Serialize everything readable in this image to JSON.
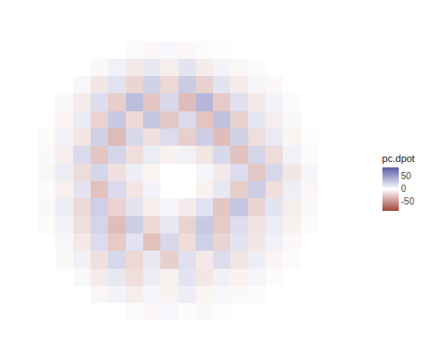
{
  "chart_data": {
    "type": "heatmap",
    "tick_labels": false,
    "colors": [
      "#a3453b",
      "#ffffff",
      "#5b5ba8"
    ],
    "colorbar_title": "pc.dpot",
    "color_range": [
      -85,
      85
    ],
    "color_ticks": [
      -50,
      0,
      50
    ],
    "x": [
      -7.5,
      -6.5,
      -5.5,
      -4.5,
      -3.5,
      -2.5,
      -1.5,
      -0.5,
      0.5,
      1.5,
      2.5,
      3.5,
      4.5,
      5.5,
      6.5,
      7.5
    ],
    "y": [
      -7.5,
      -6.5,
      -5.5,
      -4.5,
      -3.5,
      -2.5,
      -1.5,
      -0.5,
      0.5,
      1.5,
      2.5,
      3.5,
      4.5,
      5.5,
      6.5,
      7.5
    ],
    "z": [
      [
        null,
        null,
        null,
        null,
        null,
        2,
        -3,
        4,
        -2,
        3,
        1,
        null,
        null,
        null,
        null,
        null
      ],
      [
        null,
        null,
        null,
        -4,
        6,
        -8,
        5,
        -6,
        9,
        -5,
        4,
        -3,
        2,
        null,
        null,
        null
      ],
      [
        null,
        null,
        3,
        -9,
        12,
        -15,
        10,
        -7,
        14,
        -11,
        8,
        -6,
        5,
        -2,
        null,
        null
      ],
      [
        null,
        -3,
        8,
        -14,
        20,
        -18,
        12,
        -22,
        16,
        -10,
        18,
        -12,
        9,
        -5,
        2,
        null
      ],
      [
        null,
        4,
        -10,
        18,
        -24,
        15,
        -28,
        20,
        -16,
        25,
        -19,
        14,
        -11,
        7,
        -3,
        null
      ],
      [
        -2,
        6,
        -15,
        22,
        -30,
        26,
        -18,
        12,
        -20,
        28,
        -24,
        17,
        -13,
        10,
        -6,
        2
      ],
      [
        -3,
        9,
        -18,
        25,
        -20,
        14,
        -8,
        5,
        -9,
        15,
        -26,
        30,
        -19,
        14,
        -8,
        3
      ],
      [
        2,
        -7,
        14,
        -28,
        19,
        -12,
        6,
        0,
        0,
        -6,
        12,
        -22,
        26,
        -15,
        9,
        -4
      ],
      [
        -4,
        10,
        -16,
        21,
        -14,
        9,
        -5,
        0,
        0,
        5,
        -10,
        18,
        -25,
        20,
        -11,
        5
      ],
      [
        3,
        -8,
        19,
        -26,
        22,
        -15,
        10,
        -6,
        7,
        -12,
        20,
        -28,
        22,
        -16,
        7,
        -2
      ],
      [
        -2,
        7,
        -12,
        24,
        -31,
        20,
        -14,
        18,
        -22,
        26,
        -30,
        24,
        -15,
        11,
        -5,
        1
      ],
      [
        null,
        -5,
        11,
        -20,
        28,
        -17,
        30,
        -25,
        19,
        -27,
        32,
        -21,
        13,
        -8,
        3,
        null
      ],
      [
        null,
        3,
        -9,
        17,
        -22,
        34,
        -26,
        20,
        -30,
        38,
        -24,
        16,
        -10,
        6,
        -2,
        null
      ],
      [
        null,
        null,
        4,
        -11,
        15,
        -19,
        24,
        -18,
        27,
        -21,
        14,
        -9,
        5,
        -3,
        null,
        null
      ],
      [
        null,
        null,
        null,
        -3,
        7,
        -10,
        12,
        -8,
        14,
        -9,
        6,
        -4,
        2,
        null,
        null,
        null
      ],
      [
        null,
        null,
        null,
        null,
        null,
        2,
        -3,
        4,
        -3,
        2,
        -1,
        null,
        null,
        null,
        null,
        null
      ]
    ]
  }
}
